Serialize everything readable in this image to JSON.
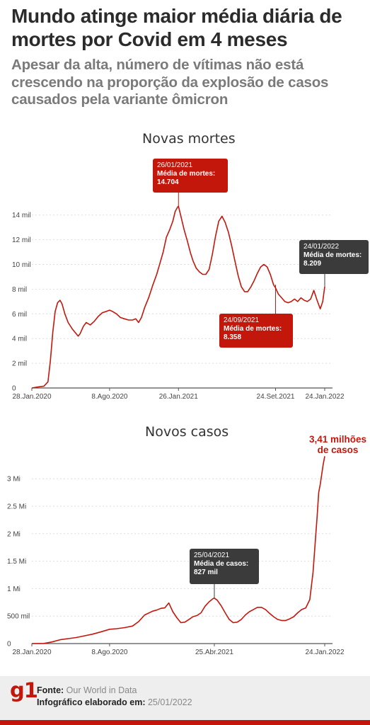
{
  "title": "Mundo atinge maior média diária de mortes por Covid em 4 meses",
  "subtitle": "Apesar da alta, número de vítimas não está crescendo na proporção da explosão de casos causados pela variante ômicron",
  "chart_data": [
    {
      "type": "line",
      "title": "Novas mortes",
      "y_ticks": [
        "0",
        "2 mil",
        "4 mil",
        "6 mil",
        "8 mil",
        "10 mil",
        "12 mil",
        "14 mil"
      ],
      "y_tick_values": [
        0,
        2000,
        4000,
        6000,
        8000,
        10000,
        12000,
        14000
      ],
      "x_ticks": [
        "28.Jan.2020",
        "8.Ago.2020",
        "26.Jan.2021",
        "24.Set.2021",
        "24.Jan.2022"
      ],
      "x_tick_values": [
        0,
        193,
        364,
        605,
        727
      ],
      "xlim": [
        0,
        727
      ],
      "ylim": [
        0,
        14704
      ],
      "color": "#c4170c",
      "series": [
        {
          "x": [
            0,
            15,
            30,
            40,
            46,
            52,
            58,
            64,
            70,
            75,
            82,
            90,
            100,
            110,
            115,
            120,
            128,
            135,
            145,
            155,
            165,
            175,
            185,
            193,
            200,
            210,
            220,
            230,
            240,
            250,
            258,
            265,
            272,
            280,
            290,
            300,
            310,
            318,
            326,
            334,
            342,
            350,
            356,
            362,
            364,
            370,
            378,
            386,
            394,
            400,
            408,
            416,
            424,
            432,
            440,
            448,
            456,
            464,
            472,
            480,
            488,
            496,
            504,
            512,
            520,
            528,
            536,
            544,
            552,
            560,
            568,
            576,
            584,
            592,
            600,
            605,
            612,
            620,
            628,
            636,
            644,
            652,
            660,
            668,
            676,
            684,
            692,
            700,
            708,
            716,
            722,
            727
          ],
          "y": [
            0,
            80,
            150,
            500,
            2200,
            4500,
            6200,
            6900,
            7100,
            6800,
            6000,
            5300,
            4800,
            4400,
            4200,
            4400,
            5000,
            5300,
            5100,
            5400,
            5800,
            6100,
            6200,
            6300,
            6200,
            6000,
            5700,
            5600,
            5500,
            5500,
            5600,
            5300,
            5700,
            6500,
            7300,
            8300,
            9200,
            10100,
            11000,
            12200,
            12800,
            13500,
            14300,
            14650,
            14704,
            13900,
            12800,
            11900,
            10900,
            10300,
            9700,
            9400,
            9200,
            9200,
            9600,
            10800,
            12300,
            13500,
            13900,
            13400,
            12600,
            11500,
            10300,
            9100,
            8200,
            7800,
            7800,
            8200,
            8700,
            9300,
            9800,
            10000,
            9800,
            9200,
            8358,
            8100,
            7600,
            7300,
            7000,
            6900,
            7000,
            7200,
            7000,
            7300,
            7100,
            7000,
            7200,
            7900,
            7100,
            6400,
            7000,
            8209
          ]
        }
      ],
      "annotations": [
        {
          "date": "26/01/2021",
          "label": "Média de mortes:",
          "value": "14.704",
          "color": "#c4170c"
        },
        {
          "date": "24/01/2022",
          "label": "Média de mortes:",
          "value": "8.209",
          "color": "#3b3b3b"
        },
        {
          "date": "24/09/2021",
          "label": "Média de mortes:",
          "value": "8.358",
          "color": "#c4170c"
        }
      ]
    },
    {
      "type": "line",
      "title": "Novos casos",
      "y_ticks": [
        "0",
        "500 mil",
        "1 Mi",
        "1.5 Mi",
        "2 Mi",
        "2.5 Mi",
        "3 Mi"
      ],
      "y_tick_values": [
        0,
        500000,
        1000000,
        1500000,
        2000000,
        2500000,
        3000000
      ],
      "x_ticks": [
        "28.Jan.2020",
        "8.Ago.2020",
        "25.Abr.2021",
        "24.Jan.2022"
      ],
      "x_tick_values": [
        0,
        193,
        453,
        727
      ],
      "xlim": [
        0,
        727
      ],
      "ylim": [
        0,
        3410000
      ],
      "color": "#c4170c",
      "series": [
        {
          "x": [
            0,
            30,
            50,
            70,
            90,
            110,
            130,
            150,
            170,
            193,
            210,
            230,
            250,
            265,
            280,
            300,
            310,
            320,
            330,
            340,
            350,
            360,
            370,
            380,
            390,
            400,
            410,
            420,
            430,
            440,
            450,
            453,
            460,
            470,
            480,
            490,
            500,
            510,
            520,
            530,
            540,
            550,
            560,
            570,
            580,
            590,
            600,
            610,
            620,
            630,
            640,
            650,
            660,
            670,
            680,
            690,
            698,
            704,
            708,
            712,
            716,
            720,
            723,
            727
          ],
          "y": [
            0,
            2000,
            30000,
            70000,
            90000,
            110000,
            140000,
            170000,
            210000,
            260000,
            270000,
            290000,
            320000,
            400000,
            520000,
            590000,
            610000,
            640000,
            650000,
            740000,
            580000,
            470000,
            380000,
            390000,
            440000,
            490000,
            510000,
            560000,
            680000,
            760000,
            820000,
            827000,
            790000,
            690000,
            560000,
            440000,
            380000,
            390000,
            440000,
            520000,
            580000,
            620000,
            660000,
            660000,
            620000,
            550000,
            490000,
            440000,
            420000,
            420000,
            450000,
            490000,
            560000,
            620000,
            650000,
            800000,
            1300000,
            1900000,
            2300000,
            2750000,
            2900000,
            3100000,
            3250000,
            3410000
          ]
        }
      ],
      "annotations": [
        {
          "date": "25/04/2021",
          "label": "Média de casos:",
          "value": "827 mil",
          "color": "#3b3b3b"
        },
        {
          "text_line1": "3,41 milhões",
          "text_line2": "de casos",
          "color": "#c4170c"
        }
      ]
    }
  ],
  "footer": {
    "logo": "g1",
    "source_label": "Fonte:",
    "source_value": "Our World in Data",
    "made_label": "Infográfico elaborado em:",
    "made_value": "25/01/2022"
  }
}
